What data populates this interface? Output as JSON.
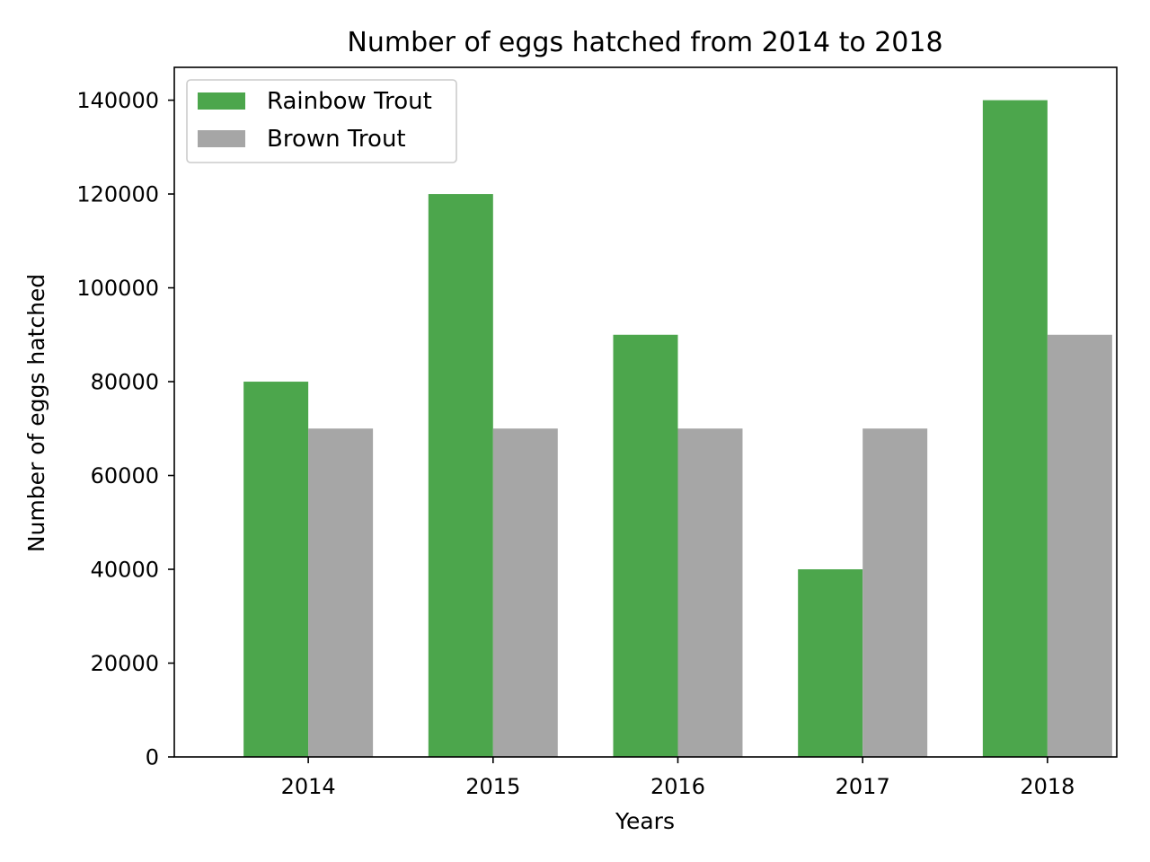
{
  "chart_data": {
    "type": "bar",
    "title": "Number of eggs hatched from 2014 to 2018",
    "xlabel": "Years",
    "ylabel": "Number of eggs hatched",
    "categories": [
      "2014",
      "2015",
      "2016",
      "2017",
      "2018"
    ],
    "series": [
      {
        "name": "Rainbow Trout",
        "values": [
          80000,
          120000,
          90000,
          40000,
          140000
        ],
        "color": "#4ca64c"
      },
      {
        "name": "Brown Trout",
        "values": [
          70000,
          70000,
          70000,
          70000,
          90000
        ],
        "color": "#a6a6a6"
      }
    ],
    "ylim": [
      0,
      147000
    ],
    "yticks": [
      0,
      20000,
      40000,
      60000,
      80000,
      100000,
      120000,
      140000
    ],
    "ytick_labels": [
      "0",
      "20000",
      "40000",
      "60000",
      "80000",
      "100000",
      "120000",
      "140000"
    ],
    "grid": false,
    "legend": "top-left"
  }
}
